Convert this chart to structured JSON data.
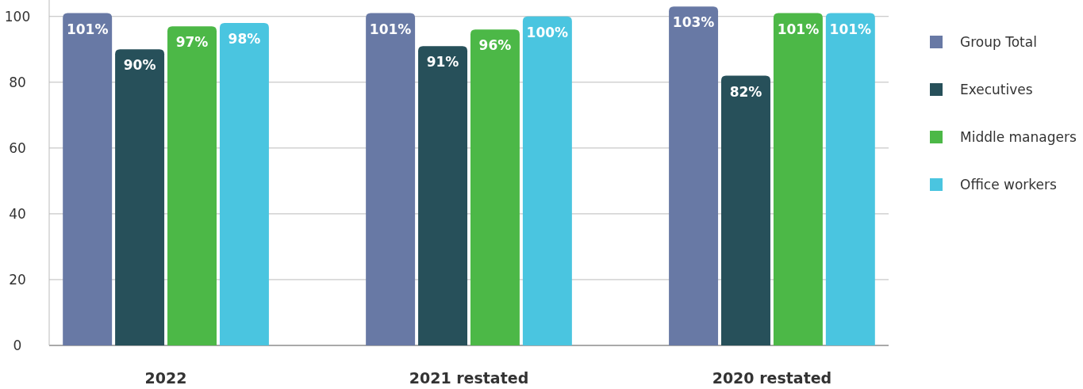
{
  "chart_data": {
    "type": "bar",
    "categories": [
      "2022",
      "2021 restated",
      "2020 restated"
    ],
    "series": [
      {
        "name": "Group Total",
        "color": "#6879a5",
        "values": [
          101,
          101,
          103
        ],
        "value_labels": [
          "101%",
          "101%",
          "103%"
        ]
      },
      {
        "name": "Executives",
        "color": "#27505a",
        "values": [
          90,
          91,
          82
        ],
        "value_labels": [
          "90%",
          "91%",
          "82%"
        ]
      },
      {
        "name": "Middle managers",
        "color": "#4cb847",
        "values": [
          97,
          96,
          101
        ],
        "value_labels": [
          "97%",
          "96%",
          "101%"
        ]
      },
      {
        "name": "Office workers",
        "color": "#4ac5e0",
        "values": [
          98,
          100,
          101
        ],
        "value_labels": [
          "98%",
          "100%",
          "101%"
        ]
      }
    ],
    "ylim": [
      0,
      105
    ],
    "yticks": [
      0,
      20,
      40,
      60,
      80,
      100
    ],
    "grid": "y",
    "legend": "right"
  }
}
